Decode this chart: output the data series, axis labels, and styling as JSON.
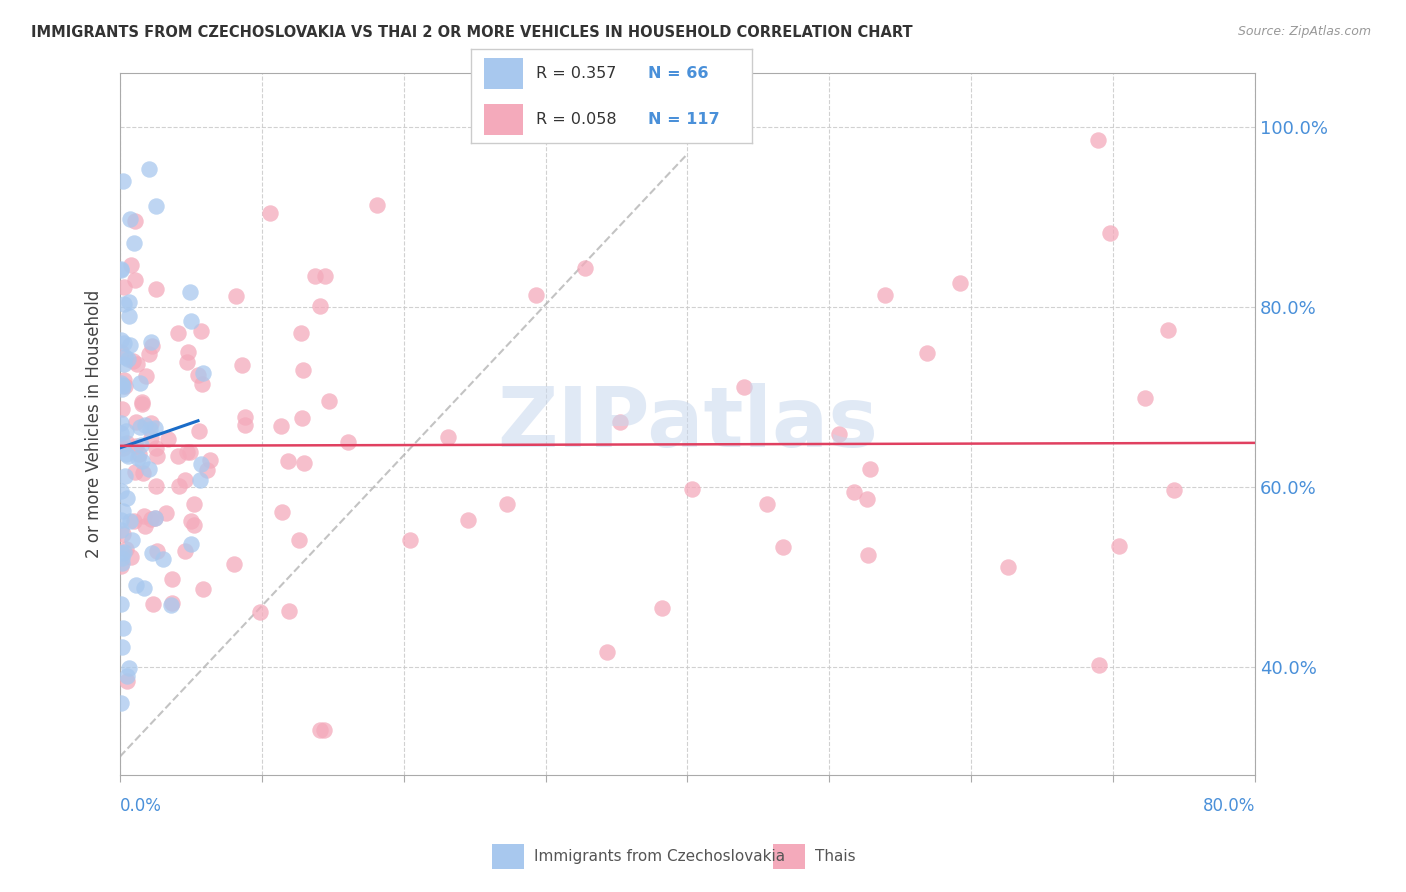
{
  "title": "IMMIGRANTS FROM CZECHOSLOVAKIA VS THAI 2 OR MORE VEHICLES IN HOUSEHOLD CORRELATION CHART",
  "source": "Source: ZipAtlas.com",
  "ylabel": "2 or more Vehicles in Household",
  "xmin": 0.0,
  "xmax": 0.8,
  "ymin": 0.28,
  "ymax": 1.06,
  "blue_dot_color": "#A8C8EE",
  "pink_dot_color": "#F4AABB",
  "blue_line_color": "#1A6CC8",
  "pink_line_color": "#E04060",
  "grid_color": "#CCCCCC",
  "axis_label_color": "#4A90D9",
  "watermark_text": "ZIPatlas",
  "watermark_color": "#C8D8EE",
  "legend_border_color": "#CCCCCC",
  "blue_r": 0.357,
  "blue_n": 66,
  "pink_r": 0.058,
  "pink_n": 117,
  "dash_line_x": [
    0.0,
    0.4
  ],
  "dash_line_y": [
    0.3,
    0.97
  ]
}
